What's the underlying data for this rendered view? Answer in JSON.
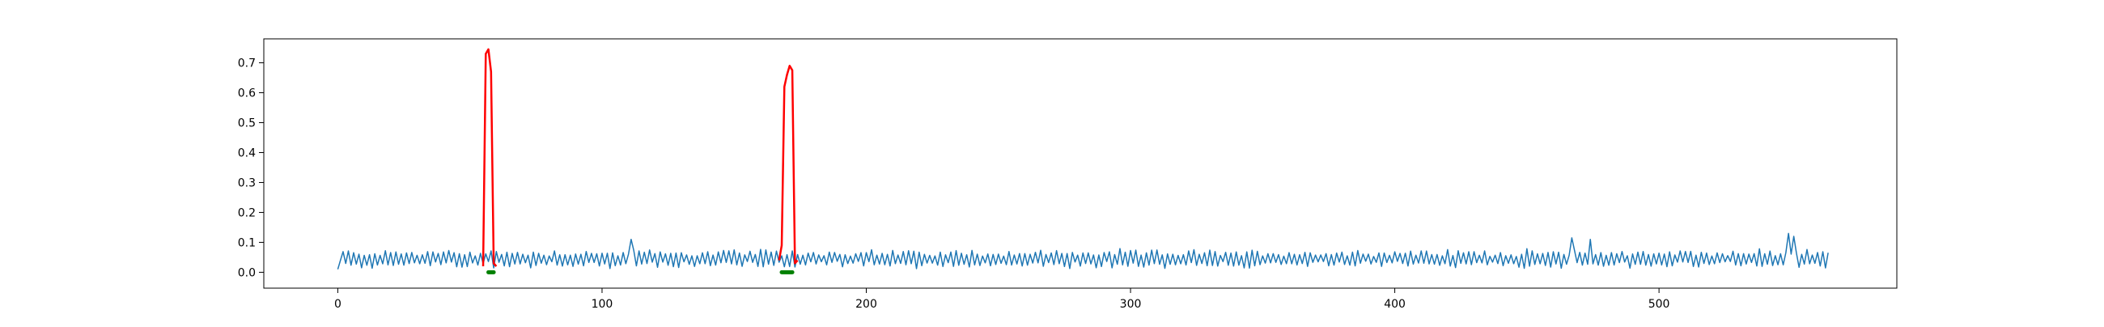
{
  "chart_data": {
    "type": "line",
    "title": "",
    "xlabel": "",
    "ylabel": "",
    "xlim": [
      -28,
      590
    ],
    "ylim": [
      -0.053,
      0.78
    ],
    "x_ticks": [
      0,
      100,
      200,
      300,
      400,
      500
    ],
    "x_tick_labels": [
      "0",
      "100",
      "200",
      "300",
      "400",
      "500"
    ],
    "y_ticks": [
      0.0,
      0.1,
      0.2,
      0.3,
      0.4,
      0.5,
      0.6,
      0.7
    ],
    "y_tick_labels": [
      "0.0",
      "0.1",
      "0.2",
      "0.3",
      "0.4",
      "0.5",
      "0.6",
      "0.7"
    ],
    "grid": false,
    "legend": "none",
    "colors": {
      "baseline": "#1f77b4",
      "anomaly": "#ff0000",
      "marker": "#008000"
    },
    "series": [
      {
        "role": "baseline",
        "n_points": 565,
        "mean": 0.045,
        "noise_amplitude": 0.035,
        "peaks": [
          [
            111,
            0.11
          ],
          [
            467,
            0.115
          ],
          [
            474,
            0.11
          ],
          [
            549,
            0.13
          ],
          [
            551,
            0.12
          ]
        ]
      },
      {
        "role": "anomaly",
        "segments": [
          {
            "x": [
              55,
              56,
              57,
              58,
              59,
              60
            ],
            "y": [
              0.02,
              0.73,
              0.745,
              0.67,
              0.03,
              0.02
            ]
          },
          {
            "x": [
              167,
              168,
              169,
              170,
              171,
              172,
              173,
              174
            ],
            "y": [
              0.04,
              0.09,
              0.62,
              0.66,
              0.69,
              0.675,
              0.03,
              0.04
            ]
          }
        ]
      },
      {
        "role": "marker",
        "ranges": [
          [
            57,
            59
          ],
          [
            168,
            172
          ]
        ],
        "y": 0.0
      }
    ]
  }
}
